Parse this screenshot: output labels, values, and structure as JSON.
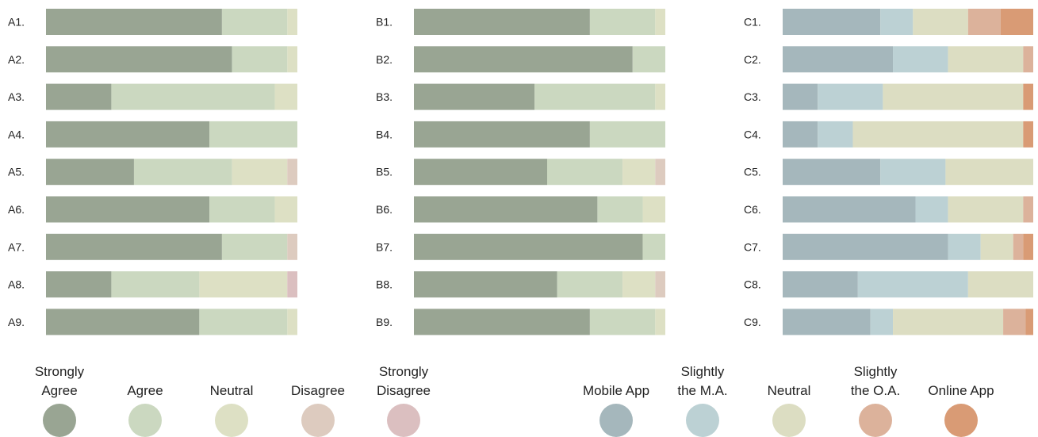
{
  "chart_data": [
    {
      "type": "bar",
      "orientation": "horizontal",
      "stacked": "percent",
      "categories": [
        "A1.",
        "A2.",
        "A3.",
        "A4.",
        "A5.",
        "A6.",
        "A7.",
        "A8.",
        "A9."
      ],
      "series": [
        {
          "name": "Strongly Agree",
          "values": [
            70,
            74,
            26,
            65,
            35,
            65,
            70,
            26,
            61
          ]
        },
        {
          "name": "Agree",
          "values": [
            26,
            22,
            65,
            35,
            39,
            26,
            26,
            35,
            35
          ]
        },
        {
          "name": "Neutral",
          "values": [
            4,
            4,
            9,
            0,
            22,
            9,
            0,
            35,
            4
          ]
        },
        {
          "name": "Disagree",
          "values": [
            0,
            0,
            0,
            0,
            4,
            0,
            4,
            0,
            0
          ]
        },
        {
          "name": "Strongly Disagree",
          "values": [
            0,
            0,
            0,
            0,
            0,
            0,
            0,
            4,
            0
          ]
        }
      ]
    },
    {
      "type": "bar",
      "orientation": "horizontal",
      "stacked": "percent",
      "categories": [
        "B1.",
        "B2.",
        "B3.",
        "B4.",
        "B5.",
        "B6.",
        "B7.",
        "B8.",
        "B9."
      ],
      "series": [
        {
          "name": "Strongly Agree",
          "values": [
            70,
            87,
            48,
            70,
            53,
            73,
            91,
            57,
            70
          ]
        },
        {
          "name": "Agree",
          "values": [
            26,
            13,
            48,
            30,
            30,
            18,
            9,
            26,
            26
          ]
        },
        {
          "name": "Neutral",
          "values": [
            4,
            0,
            4,
            0,
            13,
            9,
            0,
            13,
            4
          ]
        },
        {
          "name": "Disagree",
          "values": [
            0,
            0,
            0,
            0,
            4,
            0,
            0,
            4,
            0
          ]
        },
        {
          "name": "Strongly Disagree",
          "values": [
            0,
            0,
            0,
            0,
            0,
            0,
            0,
            0,
            0
          ]
        }
      ]
    },
    {
      "type": "bar",
      "orientation": "horizontal",
      "stacked": "percent",
      "categories": [
        "C1.",
        "C2.",
        "C3.",
        "C4.",
        "C5.",
        "C6.",
        "C7.",
        "C8.",
        "C9."
      ],
      "series": [
        {
          "name": "Mobile App",
          "values": [
            39,
            44,
            14,
            14,
            39,
            53,
            66,
            30,
            35
          ]
        },
        {
          "name": "Slightly the M.A.",
          "values": [
            13,
            22,
            26,
            14,
            26,
            13,
            13,
            44,
            9
          ]
        },
        {
          "name": "Neutral",
          "values": [
            22,
            30,
            56,
            68,
            35,
            30,
            13,
            26,
            44
          ]
        },
        {
          "name": "Slightly the O.A.",
          "values": [
            13,
            4,
            0,
            0,
            0,
            4,
            4,
            0,
            9
          ]
        },
        {
          "name": "Online App",
          "values": [
            13,
            0,
            4,
            4,
            0,
            0,
            4,
            0,
            3
          ]
        }
      ]
    }
  ],
  "colors": {
    "agree_scale": [
      "#99a593",
      "#cbd8c0",
      "#dde0c4",
      "#ddcbbf",
      "#dbbfc0"
    ],
    "app_scale": [
      "#a5b7bc",
      "#bcd1d4",
      "#dcddc2",
      "#dcb29b",
      "#d99b75"
    ]
  },
  "legends": [
    {
      "items": [
        [
          "Strongly",
          "Agree"
        ],
        [
          "Agree"
        ],
        [
          "Neutral"
        ],
        [
          "Disagree"
        ],
        [
          "Strongly",
          "Disagree"
        ]
      ]
    },
    {
      "items": [
        [
          "Mobile App"
        ],
        [
          "Slightly",
          "the M.A."
        ],
        [
          "Neutral"
        ],
        [
          "Slightly",
          "the O.A."
        ],
        [
          "Online App"
        ]
      ]
    }
  ]
}
